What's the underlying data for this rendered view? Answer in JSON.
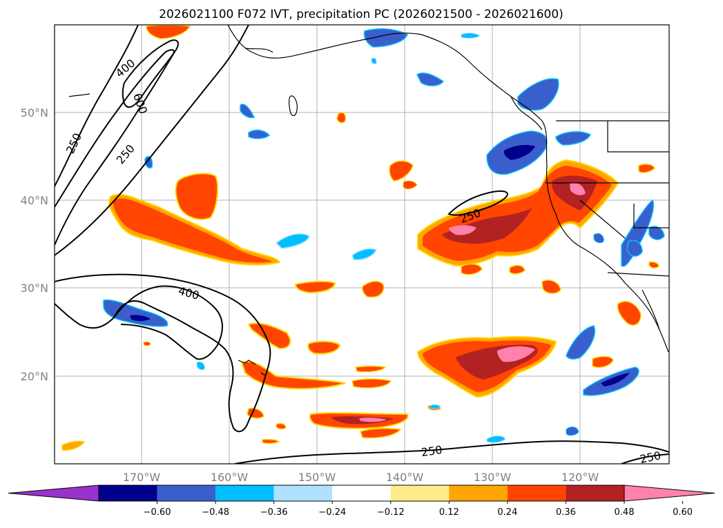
{
  "title": "2026021100 F072 IVT, precipitation PC (2026021500 - 2026021600)",
  "map": {
    "lon_range": [
      -180,
      -110
    ],
    "lat_range": [
      10,
      60
    ],
    "lon_ticks": [
      "170°W",
      "160°W",
      "150°W",
      "140°W",
      "130°W",
      "120°W"
    ],
    "lat_ticks": [
      "50°N",
      "40°N",
      "30°N",
      "20°N"
    ],
    "gridlines": true,
    "contour_labels": [
      "400",
      "600",
      "250",
      "250",
      "400",
      "250",
      "250",
      "250"
    ]
  },
  "colorbar": {
    "extend": "both",
    "tick_labels": [
      "−0.60",
      "−0.48",
      "−0.36",
      "−0.24",
      "−0.12",
      "0.12",
      "0.24",
      "0.36",
      "0.48",
      "0.60"
    ],
    "colors": [
      "#9932cc",
      "#00008b",
      "#3a5fcd",
      "#00bfff",
      "#b0e2ff",
      "#ffffff",
      "#ffec8b",
      "#ffa500",
      "#ff4500",
      "#b22222",
      "#ff82ab"
    ]
  }
}
